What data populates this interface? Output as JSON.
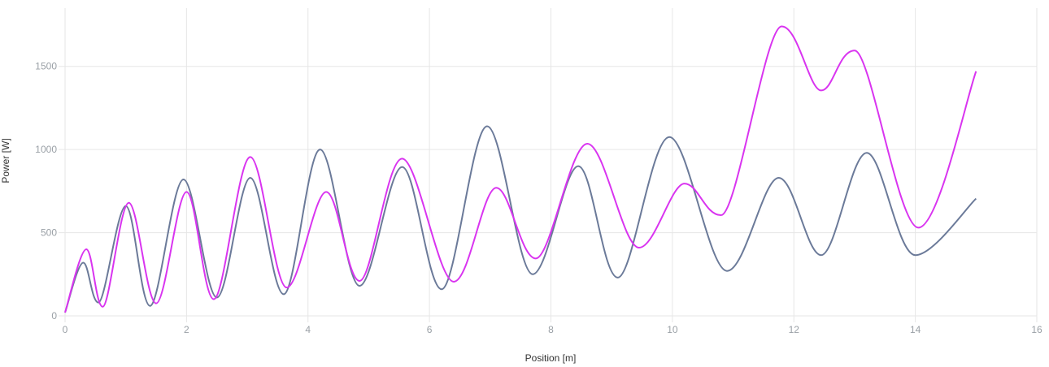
{
  "chart_data": {
    "type": "line",
    "title": "",
    "xlabel": "Position [m]",
    "ylabel": "Power [W]",
    "xlim": [
      0,
      16
    ],
    "ylim": [
      0,
      1850
    ],
    "x_ticks": [
      0,
      2,
      4,
      6,
      8,
      10,
      12,
      14,
      16
    ],
    "y_ticks": [
      0,
      500,
      1000,
      1500
    ],
    "grid": true,
    "legend": "none",
    "series": [
      {
        "color": "#6b7a99",
        "points": [
          [
            0,
            20
          ],
          [
            0.3,
            320
          ],
          [
            0.55,
            80
          ],
          [
            1.0,
            660
          ],
          [
            1.4,
            60
          ],
          [
            1.95,
            820
          ],
          [
            2.5,
            110
          ],
          [
            3.05,
            830
          ],
          [
            3.6,
            130
          ],
          [
            4.2,
            1000
          ],
          [
            4.85,
            180
          ],
          [
            5.55,
            895
          ],
          [
            6.2,
            160
          ],
          [
            6.95,
            1140
          ],
          [
            7.7,
            250
          ],
          [
            8.45,
            900
          ],
          [
            9.1,
            230
          ],
          [
            9.95,
            1075
          ],
          [
            10.9,
            270
          ],
          [
            11.75,
            830
          ],
          [
            12.45,
            365
          ],
          [
            13.2,
            980
          ],
          [
            14.0,
            365
          ],
          [
            15.0,
            705
          ]
        ]
      },
      {
        "color": "#d934f0",
        "points": [
          [
            0,
            20
          ],
          [
            0.35,
            400
          ],
          [
            0.62,
            55
          ],
          [
            1.05,
            680
          ],
          [
            1.5,
            75
          ],
          [
            2.0,
            745
          ],
          [
            2.45,
            100
          ],
          [
            3.05,
            955
          ],
          [
            3.65,
            170
          ],
          [
            4.3,
            745
          ],
          [
            4.85,
            210
          ],
          [
            5.55,
            945
          ],
          [
            6.4,
            205
          ],
          [
            7.1,
            770
          ],
          [
            7.75,
            345
          ],
          [
            8.6,
            1035
          ],
          [
            9.45,
            410
          ],
          [
            10.2,
            795
          ],
          [
            10.8,
            605
          ],
          [
            11.8,
            1740
          ],
          [
            12.45,
            1355
          ],
          [
            13.0,
            1595
          ],
          [
            14.05,
            530
          ],
          [
            15.0,
            1470
          ]
        ]
      }
    ]
  }
}
